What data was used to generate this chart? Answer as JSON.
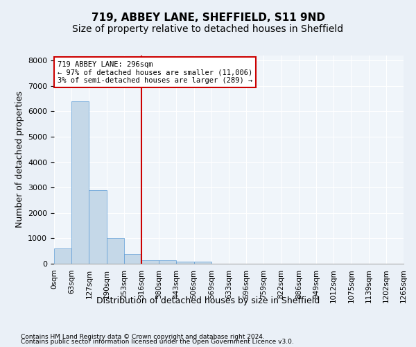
{
  "title": "719, ABBEY LANE, SHEFFIELD, S11 9ND",
  "subtitle": "Size of property relative to detached houses in Sheffield",
  "xlabel": "Distribution of detached houses by size in Sheffield",
  "ylabel": "Number of detached properties",
  "footnote1": "Contains HM Land Registry data © Crown copyright and database right 2024.",
  "footnote2": "Contains public sector information licensed under the Open Government Licence v3.0.",
  "annotation_line1": "719 ABBEY LANE: 296sqm",
  "annotation_line2": "← 97% of detached houses are smaller (11,006)",
  "annotation_line3": "3% of semi-detached houses are larger (289) →",
  "bar_color": "#c5d8e8",
  "bar_edge_color": "#5b9bd5",
  "vline_color": "#cc0000",
  "bar_values": [
    600,
    6400,
    2900,
    1000,
    370,
    150,
    130,
    80,
    70,
    0,
    0,
    0,
    0,
    0,
    0,
    0,
    0,
    0,
    0,
    0
  ],
  "x_tick_labels": [
    "0sqm",
    "63sqm",
    "127sqm",
    "190sqm",
    "253sqm",
    "316sqm",
    "380sqm",
    "443sqm",
    "506sqm",
    "569sqm",
    "633sqm",
    "696sqm",
    "759sqm",
    "822sqm",
    "886sqm",
    "949sqm",
    "1012sqm",
    "1075sqm",
    "1139sqm",
    "1202sqm",
    "1265sqm"
  ],
  "ylim": [
    0,
    8200
  ],
  "yticks": [
    0,
    1000,
    2000,
    3000,
    4000,
    5000,
    6000,
    7000,
    8000
  ],
  "title_fontsize": 11,
  "subtitle_fontsize": 10,
  "tick_fontsize": 7.5,
  "ylabel_fontsize": 9,
  "xlabel_fontsize": 9,
  "background_color": "#eaf0f7",
  "plot_bg_color": "#f0f5fa"
}
